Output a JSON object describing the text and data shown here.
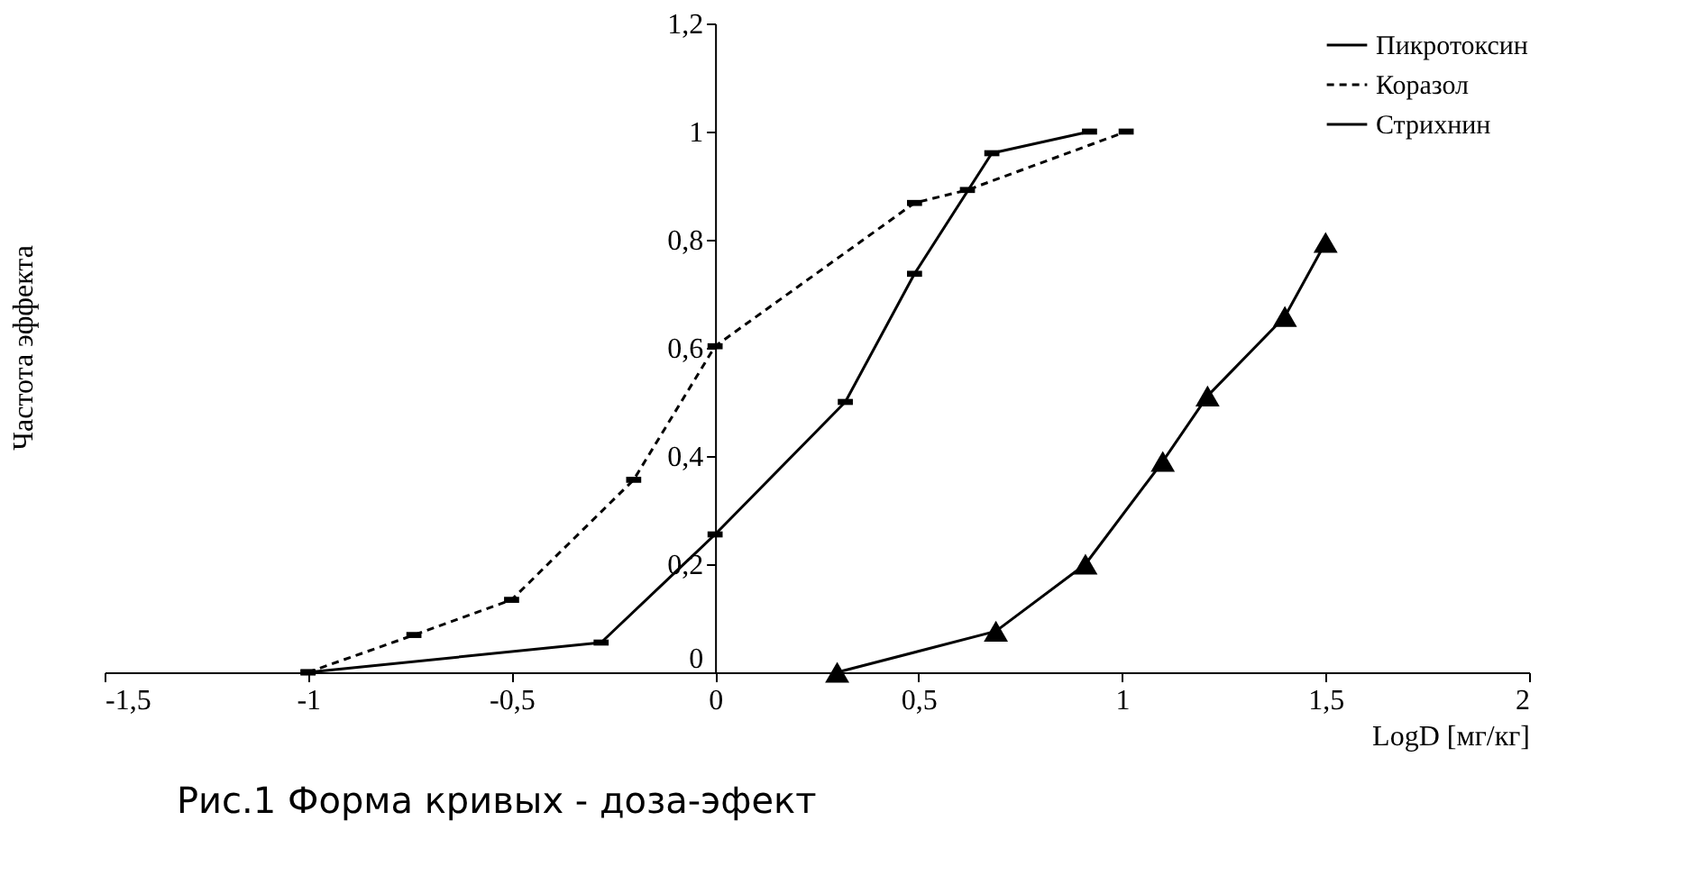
{
  "chart_data": {
    "type": "line",
    "xlabel": "LogD [мг/кг]",
    "ylabel": "Частота эффекта",
    "xlim": [
      -1.5,
      2
    ],
    "xticks": [
      {
        "value": -1.5,
        "label": "-1,5"
      },
      -1,
      {
        "value": -0.5,
        "label": "-0,5"
      },
      0,
      {
        "value": 0.5,
        "label": "0,5"
      },
      1,
      {
        "value": 1.5,
        "label": "1,5"
      },
      2
    ],
    "ylim": [
      0,
      1.2
    ],
    "yticks": [
      0,
      {
        "value": 0.2,
        "label": "0,2"
      },
      {
        "value": 0.4,
        "label": "0,4"
      },
      {
        "value": 0.6,
        "label": "0,6"
      },
      {
        "value": 0.8,
        "label": "0,8"
      },
      1,
      {
        "value": 1.2,
        "label": "1,2"
      }
    ],
    "grid": false,
    "legend": "top right",
    "annotations": [
      "Рис.1 Форма кривых - доза-эфект"
    ],
    "series": [
      {
        "name": "Пикротоксин",
        "color": "#000000",
        "line_style": "solid",
        "marker": "square",
        "x": [
          -1,
          -0.28,
          0.0,
          0.32,
          0.49,
          0.68,
          0.92
        ],
        "values": [
          0,
          0.055,
          0.255,
          0.5,
          0.737,
          0.96,
          1.0
        ]
      },
      {
        "name": "Коразол",
        "color": "#000000",
        "line_style": "dashed",
        "marker": "square",
        "x": [
          -1,
          -0.74,
          -0.5,
          -0.2,
          0.0,
          0.49,
          0.62,
          1.01
        ],
        "values": [
          0,
          0.069,
          0.134,
          0.356,
          0.603,
          0.868,
          0.892,
          1.0
        ]
      },
      {
        "name": "Стрихнин",
        "color": "#000000",
        "line_style": "solid",
        "marker": "triangle",
        "x": [
          0.3,
          0.69,
          0.91,
          1.1,
          1.21,
          1.4,
          1.5
        ],
        "values": [
          0,
          0.076,
          0.2,
          0.39,
          0.511,
          0.658,
          0.795
        ]
      }
    ]
  }
}
